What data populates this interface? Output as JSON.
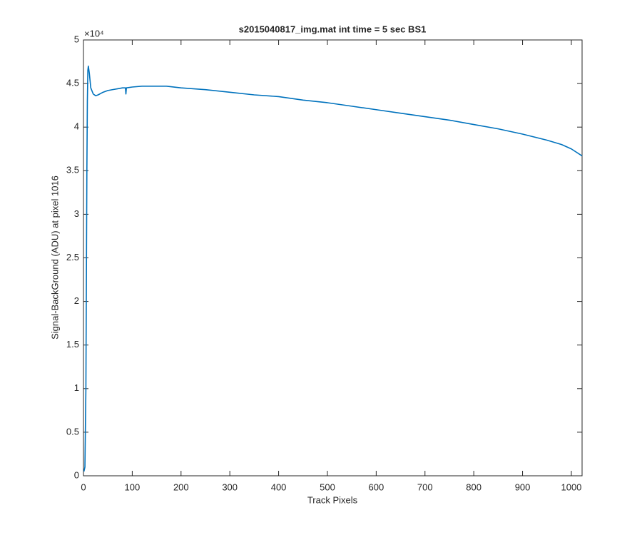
{
  "chart_data": {
    "type": "line",
    "title": "s2015040817_img.mat int time = 5 sec   BS1",
    "x_label": "Track Pixels",
    "y_label": "Signal-BackGround (ADU) at pixel 1016",
    "y_exponent": "×10⁴",
    "color": "#0072bd",
    "x": [
      1,
      3,
      5,
      7,
      8,
      9,
      10,
      12,
      15,
      20,
      25,
      30,
      40,
      50,
      60,
      70,
      80,
      86,
      87,
      88,
      100,
      120,
      150,
      170,
      200,
      250,
      300,
      350,
      400,
      450,
      500,
      550,
      600,
      650,
      700,
      750,
      800,
      850,
      900,
      950,
      980,
      1000,
      1022
    ],
    "values": [
      0.05,
      0.1,
      1.0,
      3.5,
      4.3,
      4.65,
      4.7,
      4.62,
      4.45,
      4.38,
      4.36,
      4.37,
      4.4,
      4.42,
      4.43,
      4.44,
      4.45,
      4.45,
      4.38,
      4.45,
      4.46,
      4.47,
      4.47,
      4.47,
      4.45,
      4.43,
      4.4,
      4.37,
      4.35,
      4.31,
      4.28,
      4.24,
      4.2,
      4.16,
      4.12,
      4.08,
      4.03,
      3.98,
      3.92,
      3.85,
      3.8,
      3.75,
      3.67
    ],
    "xlim": [
      0,
      1022
    ],
    "ylim": [
      0,
      5
    ],
    "xticks": [
      0,
      100,
      200,
      300,
      400,
      500,
      600,
      700,
      800,
      900,
      1000
    ],
    "yticks": [
      0,
      0.5,
      1,
      1.5,
      2,
      2.5,
      3,
      3.5,
      4,
      4.5,
      5
    ],
    "grid": false
  }
}
